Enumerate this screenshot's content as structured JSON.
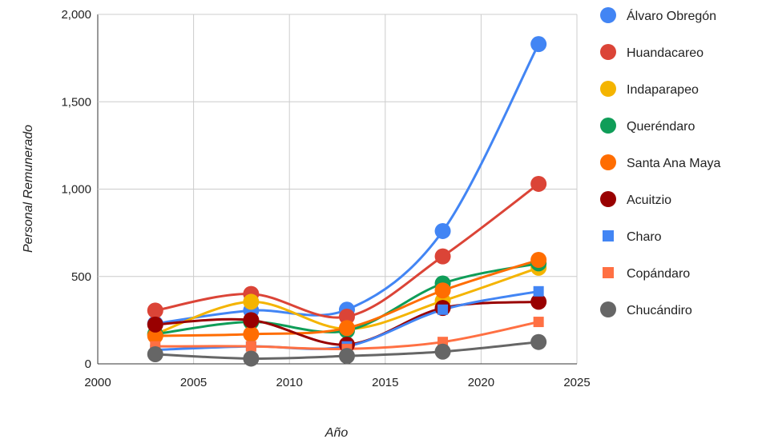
{
  "chart_data": {
    "type": "line",
    "title": "",
    "xlabel": "Año",
    "ylabel": "Personal Remunerado",
    "xlim": [
      2000,
      2025
    ],
    "ylim": [
      0,
      2000
    ],
    "x_ticks": [
      "2000",
      "2005",
      "2010",
      "2015",
      "2020",
      "2025"
    ],
    "y_ticks": [
      "0",
      "500",
      "1,000",
      "1,500",
      "2,000"
    ],
    "grid": true,
    "legend_position": "right",
    "series": [
      {
        "name": "Álvaro Obregón",
        "color": "#4285F4",
        "marker": "circle",
        "x": [
          2003,
          2008,
          2013,
          2018,
          2023
        ],
        "values": [
          230,
          305,
          310,
          760,
          1830
        ]
      },
      {
        "name": "Huandacareo",
        "color": "#DB4437",
        "marker": "circle",
        "x": [
          2003,
          2008,
          2013,
          2018,
          2023
        ],
        "values": [
          305,
          400,
          270,
          615,
          1030
        ]
      },
      {
        "name": "Indaparapeo",
        "color": "#F4B400",
        "marker": "circle",
        "x": [
          2003,
          2008,
          2013,
          2018,
          2023
        ],
        "values": [
          170,
          355,
          200,
          360,
          550
        ]
      },
      {
        "name": "Queréndaro",
        "color": "#0F9D58",
        "marker": "circle",
        "x": [
          2003,
          2008,
          2013,
          2018,
          2023
        ],
        "values": [
          170,
          240,
          190,
          460,
          575
        ]
      },
      {
        "name": "Santa Ana Maya",
        "color": "#FF6D01",
        "marker": "circle",
        "x": [
          2003,
          2008,
          2013,
          2018,
          2023
        ],
        "values": [
          160,
          170,
          205,
          420,
          595
        ]
      },
      {
        "name": "Acuitzio",
        "color": "#990000",
        "marker": "circle",
        "x": [
          2003,
          2008,
          2013,
          2018,
          2023
        ],
        "values": [
          225,
          250,
          110,
          320,
          355
        ]
      },
      {
        "name": "Charo",
        "color": "#4285F4",
        "marker": "square",
        "x": [
          2003,
          2008,
          2013,
          2018,
          2023
        ],
        "values": [
          80,
          100,
          100,
          310,
          415
        ]
      },
      {
        "name": "Copándaro",
        "color": "#FF7043",
        "marker": "square",
        "x": [
          2003,
          2008,
          2013,
          2018,
          2023
        ],
        "values": [
          100,
          100,
          85,
          125,
          240
        ]
      },
      {
        "name": "Chucándiro",
        "color": "#666666",
        "marker": "circle",
        "x": [
          2003,
          2008,
          2013,
          2018,
          2023
        ],
        "values": [
          55,
          30,
          45,
          70,
          125
        ]
      }
    ]
  }
}
